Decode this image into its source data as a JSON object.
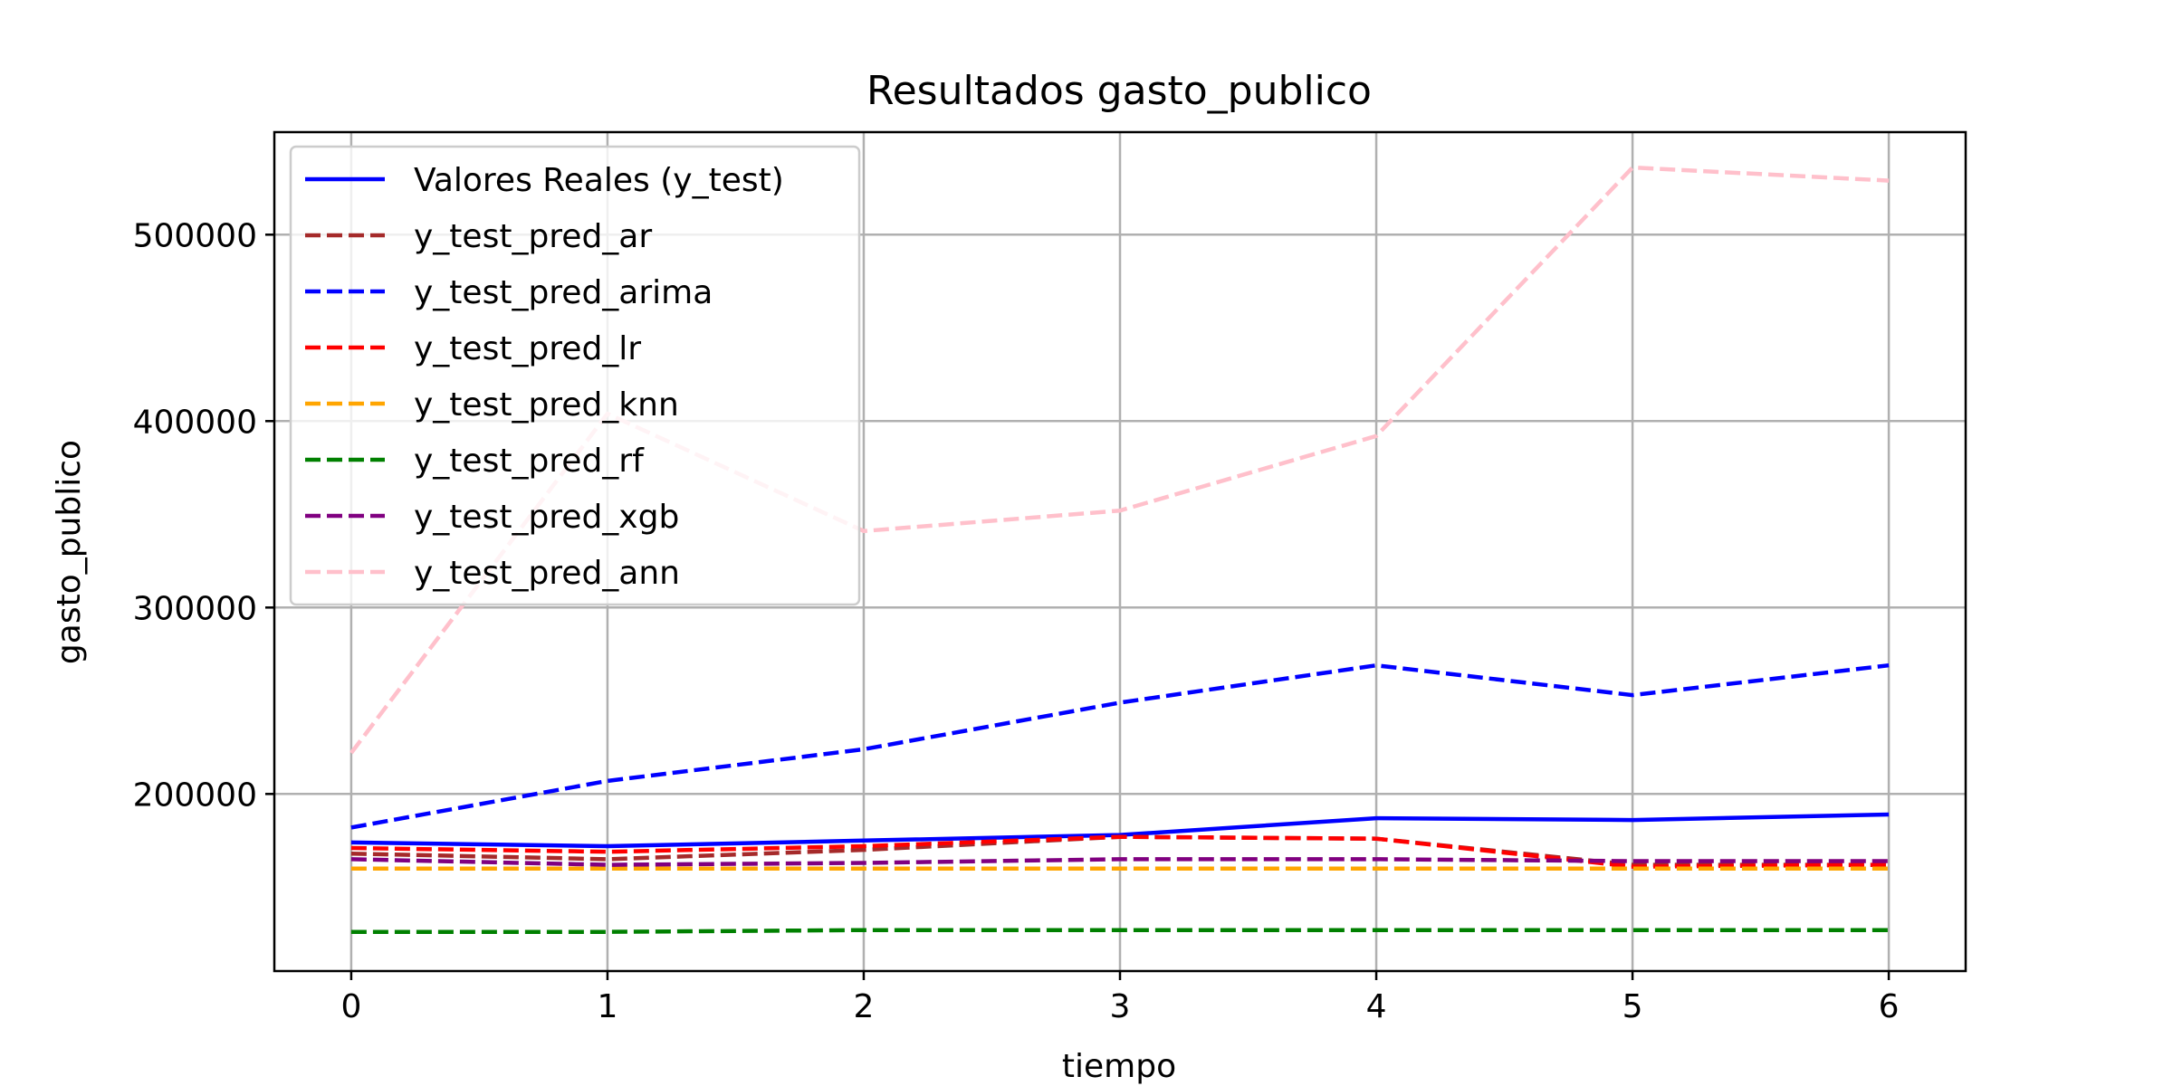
{
  "chart_data": {
    "type": "line",
    "title": "Resultados gasto_publico",
    "xlabel": "tiempo",
    "ylabel": "gasto_publico",
    "x": [
      0,
      1,
      2,
      3,
      4,
      5,
      6
    ],
    "xlim": [
      -0.3,
      6.3
    ],
    "ylim": [
      105000,
      555000
    ],
    "xticks": [
      0,
      1,
      2,
      3,
      4,
      5,
      6
    ],
    "yticks": [
      200000,
      300000,
      400000,
      500000
    ],
    "grid": true,
    "legend_position": "upper left",
    "series": [
      {
        "name": "Valores Reales (y_test)",
        "color": "#0000ff",
        "style": "solid",
        "values": [
          174000,
          172000,
          175000,
          178000,
          187000,
          186000,
          189000
        ]
      },
      {
        "name": "y_test_pred_ar",
        "color": "#a52a2a",
        "style": "dashed",
        "values": [
          168000,
          165000,
          170000,
          177000,
          176000,
          162000,
          162000
        ]
      },
      {
        "name": "y_test_pred_arima",
        "color": "#0000ff",
        "style": "dashed",
        "values": [
          182000,
          207000,
          224000,
          249000,
          269000,
          253000,
          269000
        ]
      },
      {
        "name": "y_test_pred_lr",
        "color": "#ff0000",
        "style": "dashed",
        "values": [
          171000,
          169000,
          172000,
          177000,
          176000,
          161000,
          162000
        ]
      },
      {
        "name": "y_test_pred_knn",
        "color": "#ffa500",
        "style": "dashed",
        "values": [
          160000,
          160000,
          160000,
          160000,
          160000,
          160000,
          160000
        ]
      },
      {
        "name": "y_test_pred_rf",
        "color": "#008000",
        "style": "dashed",
        "values": [
          126000,
          126000,
          127000,
          127000,
          127000,
          127000,
          127000
        ]
      },
      {
        "name": "y_test_pred_xgb",
        "color": "#800080",
        "style": "dashed",
        "values": [
          165000,
          162000,
          163000,
          165000,
          165000,
          164000,
          164000
        ]
      },
      {
        "name": "y_test_pred_ann",
        "color": "#ffc0cb",
        "style": "dashed",
        "values": [
          222000,
          404000,
          341000,
          352000,
          392000,
          536000,
          529000
        ]
      }
    ]
  }
}
